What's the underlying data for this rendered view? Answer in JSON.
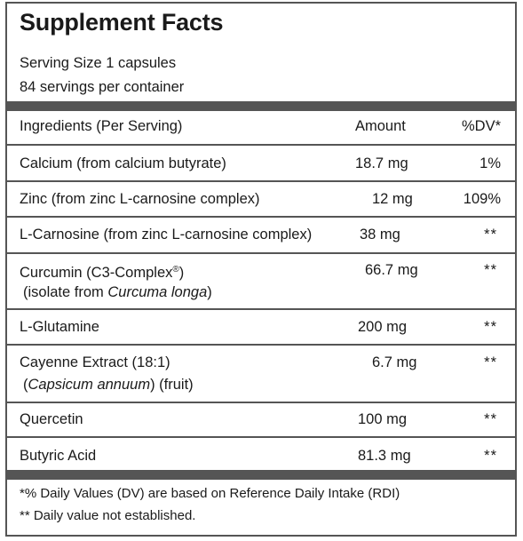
{
  "title": "Supplement Facts",
  "serving_size": "Serving Size 1 capsules",
  "servings_per_container": "84 servings per container",
  "header": {
    "ingredients": "Ingredients (Per Serving)",
    "amount": "Amount",
    "dv": "%DV*"
  },
  "rows": [
    {
      "name": "Calcium (from calcium butyrate)",
      "amount": "18.7 mg",
      "dv": "1%"
    },
    {
      "name": "Zinc (from zinc L-carnosine complex)",
      "amount": "12 mg",
      "dv": "109%"
    },
    {
      "name": "L-Carnosine (from zinc L-carnosine complex)",
      "amount": "38 mg",
      "dv": "**"
    },
    {
      "name": "Curcumin (C3-Complex",
      "reg": "®",
      "name_close": ")",
      "name_line2_pre": "(isolate from ",
      "name_line2_em": "Curcuma longa",
      "name_line2_post": ")",
      "amount": "66.7 mg",
      "dv": "**"
    },
    {
      "name": "L-Glutamine",
      "amount": "200 mg",
      "dv": "**"
    },
    {
      "name": "Cayenne Extract (18:1)",
      "name_line2_pre": "(",
      "name_line2_em": "Capsicum annuum",
      "name_line2_post": ") (fruit)",
      "amount": "6.7 mg",
      "dv": "**"
    },
    {
      "name": "Quercetin",
      "amount": "100 mg",
      "dv": "**"
    },
    {
      "name": "Butyric Acid",
      "amount": "81.3 mg",
      "dv": "**"
    }
  ],
  "footnotes": {
    "dv_note": "*% Daily Values (DV) are based on Reference Daily Intake (RDI)",
    "not_established": "** Daily value not established."
  }
}
